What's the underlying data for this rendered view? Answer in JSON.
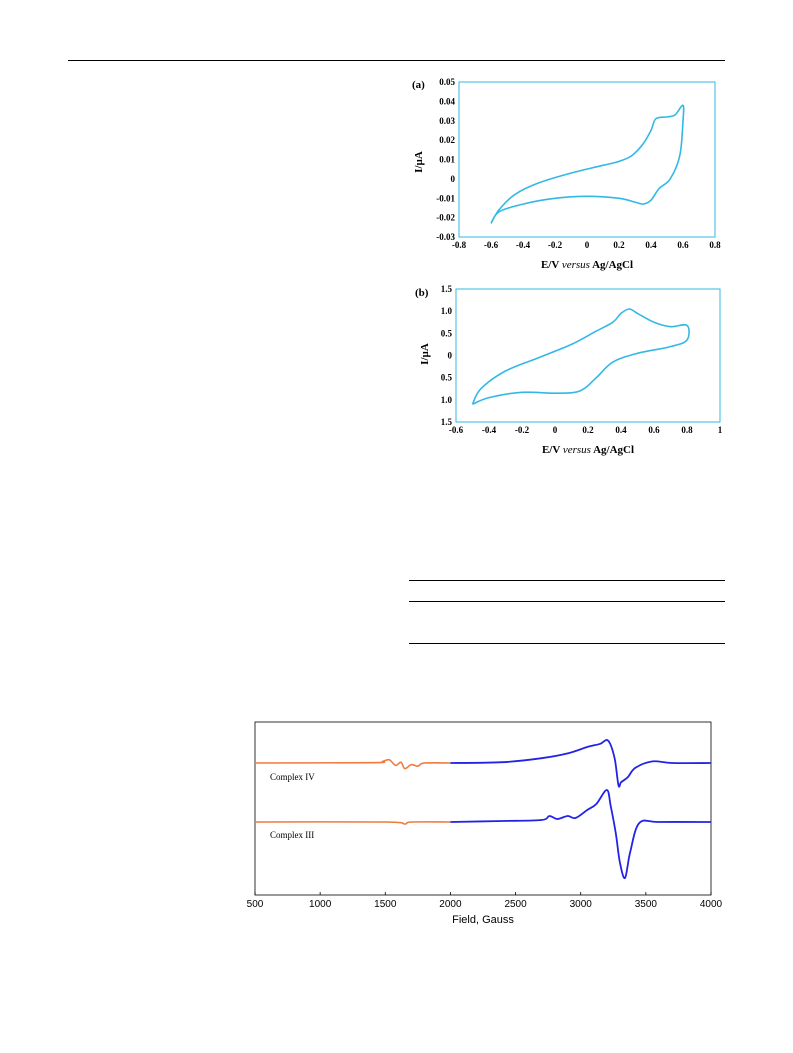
{
  "figures": {
    "cv_a": {
      "panel_label": "(a)",
      "y_axis_title": "I/µA",
      "x_axis_title_prefix": "E/V ",
      "x_axis_title_italic": "versus",
      "x_axis_title_suffix": " Ag/AgCl",
      "x_ticks": [
        "-0.8",
        "-0.6",
        "-0.4",
        "-0.2",
        "0",
        "0.2",
        "0.4",
        "0.6",
        "0.8"
      ],
      "y_ticks": [
        "0.05",
        "0.04",
        "0.03",
        "0.02",
        "0.01",
        "0",
        "-0.01",
        "-0.02",
        "-0.03"
      ],
      "color": "#33b8e6"
    },
    "cv_b": {
      "panel_label": "(b)",
      "y_axis_title": "I/µA",
      "x_axis_title_prefix": "E/V ",
      "x_axis_title_italic": "versus",
      "x_axis_title_suffix": " Ag/AgCl",
      "x_ticks": [
        "-0.6",
        "-0.4",
        "-0.2",
        "0",
        "0.2",
        "0.4",
        "0.6",
        "0.8",
        "1"
      ],
      "y_ticks": [
        "1.5",
        "1.0",
        "0.5",
        "0",
        "0.5",
        "1.0",
        "1.5"
      ],
      "color": "#33b8e6"
    },
    "epr": {
      "x_axis_title": "Field, Gauss",
      "x_ticks": [
        "500",
        "1000",
        "1500",
        "2000",
        "2500",
        "3000",
        "3500",
        "4000"
      ],
      "trace_labels": [
        "Complex IV",
        "Complex III"
      ],
      "colors": {
        "low_field": "#f07a3c",
        "high_field": "#2323e6"
      }
    }
  },
  "chart_data": [
    {
      "type": "line",
      "panel": "(a)",
      "xlabel": "E/V versus Ag/AgCl",
      "ylabel": "I/µA",
      "xlim": [
        -0.8,
        0.8
      ],
      "ylim": [
        -0.03,
        0.05
      ],
      "series": [
        {
          "x": [
            -0.6,
            -0.55,
            -0.45,
            -0.3,
            -0.1,
            0.1,
            0.2,
            0.28,
            0.35,
            0.4,
            0.43,
            0.5,
            0.55,
            0.6,
            0.6,
            0.58,
            0.52,
            0.45,
            0.4,
            0.35,
            0.3,
            0.2,
            0.0,
            -0.2,
            -0.4,
            -0.55,
            -0.6
          ],
          "y": [
            -0.023,
            -0.016,
            -0.008,
            -0.002,
            0.003,
            0.007,
            0.009,
            0.012,
            0.018,
            0.025,
            0.031,
            0.032,
            0.033,
            0.038,
            0.03,
            0.012,
            0.0,
            -0.005,
            -0.011,
            -0.013,
            -0.012,
            -0.01,
            -0.009,
            -0.01,
            -0.013,
            -0.017,
            -0.023
          ]
        }
      ]
    },
    {
      "type": "line",
      "panel": "(b)",
      "xlabel": "E/V versus Ag/AgCl",
      "ylabel": "I/µA",
      "xlim": [
        -0.6,
        1.0
      ],
      "ylim": [
        -1.5,
        1.5
      ],
      "series": [
        {
          "x": [
            -0.5,
            -0.45,
            -0.3,
            -0.1,
            0.1,
            0.25,
            0.35,
            0.4,
            0.45,
            0.5,
            0.6,
            0.7,
            0.8,
            0.8,
            0.7,
            0.5,
            0.35,
            0.25,
            0.15,
            0.0,
            -0.2,
            -0.4,
            -0.5
          ],
          "y": [
            -1.1,
            -0.75,
            -0.35,
            -0.05,
            0.25,
            0.55,
            0.75,
            0.95,
            1.05,
            0.95,
            0.75,
            0.65,
            0.68,
            0.35,
            0.2,
            0.05,
            -0.15,
            -0.5,
            -0.8,
            -0.85,
            -0.83,
            -0.95,
            -1.1
          ]
        }
      ]
    },
    {
      "type": "line",
      "panel": "EPR",
      "xlabel": "Field, Gauss",
      "xlim": [
        500,
        4000
      ],
      "series": [
        {
          "name": "Complex IV",
          "x": [
            500,
            1400,
            1480,
            1530,
            1580,
            1620,
            1650,
            1700,
            1750,
            1800,
            2000,
            2400,
            2700,
            2900,
            3050,
            3150,
            3210,
            3260,
            3290,
            3310,
            3360,
            3420,
            3550,
            3700,
            4000
          ],
          "y": [
            0,
            0.02,
            0.1,
            0.2,
            -0.15,
            0.05,
            -0.35,
            -0.1,
            -0.2,
            0,
            0,
            0.05,
            0.3,
            0.6,
            1.0,
            1.2,
            1.4,
            0.3,
            -1.4,
            -1.2,
            -0.9,
            -0.3,
            0.1,
            0,
            0
          ]
        },
        {
          "name": "Complex III",
          "x": [
            500,
            1500,
            1650,
            1700,
            2000,
            2400,
            2700,
            2760,
            2820,
            2900,
            2960,
            3050,
            3120,
            3200,
            3230,
            3270,
            3300,
            3340,
            3380,
            3450,
            3600,
            4000
          ],
          "y": [
            0,
            0,
            -0.1,
            0,
            0,
            0.05,
            0.1,
            0.3,
            0.15,
            0.3,
            0.2,
            0.6,
            0.9,
            1.6,
            0.8,
            -0.6,
            -2.0,
            -2.8,
            -1.5,
            -0.05,
            0,
            0
          ]
        }
      ]
    }
  ]
}
